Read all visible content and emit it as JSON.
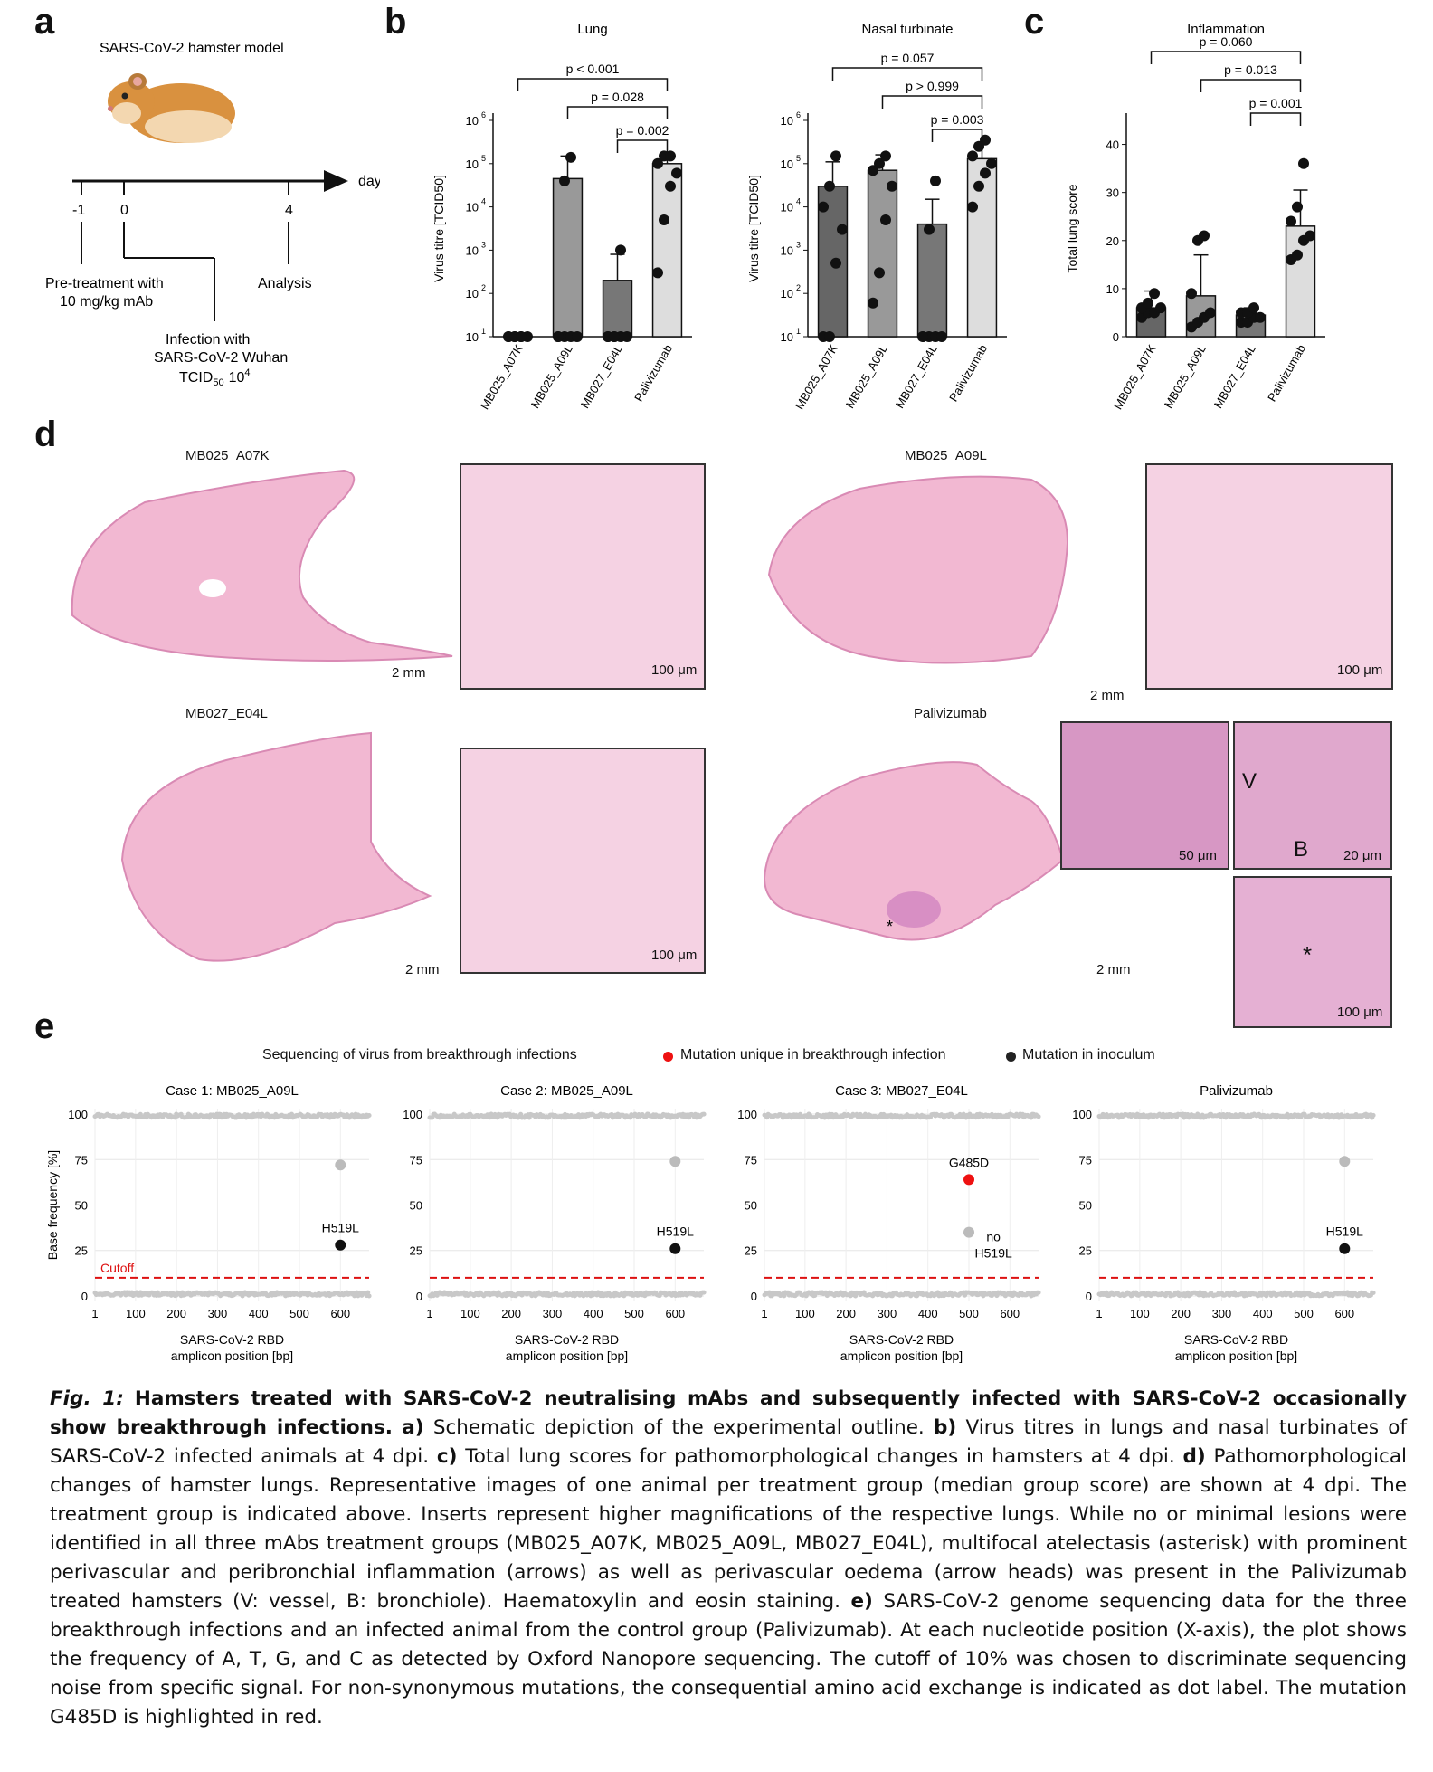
{
  "panels": {
    "a": "a",
    "b": "b",
    "c": "c",
    "d": "d",
    "e": "e"
  },
  "panel_a": {
    "title": "SARS-CoV-2 hamster model",
    "axis_unit": "day",
    "ticks": [
      "-1",
      "0",
      "4"
    ],
    "pretreatment_line1": "Pre-treatment with",
    "pretreatment_line2": "10 mg/kg mAb",
    "infection_line1": "Infection with",
    "infection_line2": "SARS-CoV-2 Wuhan",
    "infection_line3": "TCID",
    "infection_sub": "50",
    "infection_dose": "10",
    "infection_dose_exp": "4",
    "analysis": "Analysis"
  },
  "chart_data": [
    {
      "type": "bar",
      "title": "Lung",
      "ylabel": "Virus titre [TCID50]",
      "yscale": "log",
      "ylim": [
        10,
        1000000
      ],
      "yticks": [
        "10",
        "10",
        "10",
        "10",
        "10",
        "10"
      ],
      "ytick_exps": [
        "1",
        "2",
        "3",
        "4",
        "5",
        "6"
      ],
      "categories": [
        "MB025_A07K",
        "MB025_A09L",
        "MB027_E04L",
        "Palivizumab"
      ],
      "values": [
        10,
        45000,
        200,
        100000
      ],
      "error_upper": [
        10,
        150000,
        800,
        160000
      ],
      "bar_colors": [
        "#666666",
        "#999999",
        "#777777",
        "#dddddd"
      ],
      "points": [
        [
          10,
          10,
          10,
          10,
          10,
          10,
          10
        ],
        [
          10,
          10,
          10,
          10,
          10,
          40000,
          140000
        ],
        [
          10,
          10,
          10,
          10,
          10,
          10,
          1000
        ],
        [
          300,
          5000,
          30000,
          60000,
          100000,
          150000,
          150000
        ]
      ],
      "comparisons": [
        {
          "label": "p < 0.001",
          "from": 0,
          "to": 3
        },
        {
          "label": "p = 0.028",
          "from": 1,
          "to": 3
        },
        {
          "label": "p = 0.002",
          "from": 2,
          "to": 3
        }
      ]
    },
    {
      "type": "bar",
      "title": "Nasal turbinate",
      "ylabel": "Virus titre [TCID50]",
      "yscale": "log",
      "ylim": [
        10,
        1000000
      ],
      "yticks": [
        "10",
        "10",
        "10",
        "10",
        "10",
        "10"
      ],
      "ytick_exps": [
        "1",
        "2",
        "3",
        "4",
        "5",
        "6"
      ],
      "categories": [
        "MB025_A07K",
        "MB025_A09L",
        "MB027_E04L",
        "Palivizumab"
      ],
      "values": [
        30000,
        70000,
        4000,
        130000
      ],
      "error_upper": [
        110000,
        160000,
        15000,
        300000
      ],
      "bar_colors": [
        "#666666",
        "#999999",
        "#777777",
        "#dddddd"
      ],
      "points": [
        [
          10,
          10,
          500,
          3000,
          10000,
          30000,
          150000
        ],
        [
          60,
          300,
          5000,
          30000,
          70000,
          100000,
          150000
        ],
        [
          10,
          10,
          10,
          10,
          10,
          3000,
          40000
        ],
        [
          10000,
          30000,
          60000,
          100000,
          150000,
          250000,
          350000
        ]
      ],
      "comparisons": [
        {
          "label": "p = 0.057",
          "from": 0,
          "to": 3
        },
        {
          "label": "p > 0.999",
          "from": 1,
          "to": 3
        },
        {
          "label": "p = 0.003",
          "from": 2,
          "to": 3
        }
      ]
    },
    {
      "type": "bar",
      "title": "Inflammation",
      "ylabel": "Total lung score",
      "yscale": "linear",
      "ylim": [
        0,
        45
      ],
      "yticks": [
        "0",
        "10",
        "20",
        "30",
        "40"
      ],
      "categories": [
        "MB025_A07K",
        "MB025_A09L",
        "MB027_E04L",
        "Palivizumab"
      ],
      "values": [
        6,
        8.5,
        4.5,
        23
      ],
      "error_upper": [
        9.5,
        17,
        6,
        30.5
      ],
      "bar_colors": [
        "#666666",
        "#999999",
        "#777777",
        "#dddddd"
      ],
      "points": [
        [
          4,
          5,
          5,
          6,
          6,
          7,
          9
        ],
        [
          2,
          3,
          4,
          5,
          9,
          20,
          21
        ],
        [
          3,
          3,
          4,
          4,
          5,
          5,
          6
        ],
        [
          16,
          17,
          20,
          21,
          24,
          27,
          36
        ]
      ],
      "comparisons": [
        {
          "label": "p = 0.060",
          "from": 0,
          "to": 3
        },
        {
          "label": "p = 0.013",
          "from": 1,
          "to": 3
        },
        {
          "label": "p = 0.001",
          "from": 2,
          "to": 3
        }
      ]
    },
    {
      "type": "scatter",
      "title": "Case 1: MB025_A09L",
      "xlabel_line1": "SARS-CoV-2 RBD",
      "xlabel_line2": "amplicon position [bp]",
      "ylabel": "Base frequency [%]",
      "xlim": [
        1,
        670
      ],
      "ylim": [
        -3,
        103
      ],
      "xticks": [
        "1",
        "100",
        "200",
        "300",
        "400",
        "500",
        "600"
      ],
      "yticks": [
        "0",
        "25",
        "50",
        "75",
        "100"
      ],
      "cutoff": 10,
      "cutoff_label": "Cutoff",
      "highlight_points": [
        {
          "x": 600,
          "y": 72,
          "color": "#bbbbbb",
          "label": ""
        },
        {
          "x": 600,
          "y": 28,
          "color": "#111111",
          "label": "H519L"
        }
      ]
    },
    {
      "type": "scatter",
      "title": "Case 2: MB025_A09L",
      "xlabel_line1": "SARS-CoV-2 RBD",
      "xlabel_line2": "amplicon position [bp]",
      "xlim": [
        1,
        670
      ],
      "ylim": [
        -3,
        103
      ],
      "xticks": [
        "1",
        "100",
        "200",
        "300",
        "400",
        "500",
        "600"
      ],
      "yticks": [
        "0",
        "25",
        "50",
        "75",
        "100"
      ],
      "cutoff": 10,
      "highlight_points": [
        {
          "x": 600,
          "y": 74,
          "color": "#bbbbbb",
          "label": ""
        },
        {
          "x": 600,
          "y": 26,
          "color": "#111111",
          "label": "H519L"
        }
      ]
    },
    {
      "type": "scatter",
      "title": "Case 3: MB027_E04L",
      "xlabel_line1": "SARS-CoV-2 RBD",
      "xlabel_line2": "amplicon position [bp]",
      "xlim": [
        1,
        670
      ],
      "ylim": [
        -3,
        103
      ],
      "xticks": [
        "1",
        "100",
        "200",
        "300",
        "400",
        "500",
        "600"
      ],
      "yticks": [
        "0",
        "25",
        "50",
        "75",
        "100"
      ],
      "cutoff": 10,
      "highlight_points": [
        {
          "x": 500,
          "y": 64,
          "color": "#ee1111",
          "label": "G485D"
        },
        {
          "x": 500,
          "y": 35,
          "color": "#bbbbbb",
          "label": ""
        }
      ],
      "annotation_line1": "no",
      "annotation_line2": "H519L"
    },
    {
      "type": "scatter",
      "title": "Palivizumab",
      "xlabel_line1": "SARS-CoV-2 RBD",
      "xlabel_line2": "amplicon position [bp]",
      "xlim": [
        1,
        670
      ],
      "ylim": [
        -3,
        103
      ],
      "xticks": [
        "1",
        "100",
        "200",
        "300",
        "400",
        "500",
        "600"
      ],
      "yticks": [
        "0",
        "25",
        "50",
        "75",
        "100"
      ],
      "cutoff": 10,
      "highlight_points": [
        {
          "x": 600,
          "y": 74,
          "color": "#bbbbbb",
          "label": ""
        },
        {
          "x": 600,
          "y": 26,
          "color": "#111111",
          "label": "H519L"
        }
      ]
    }
  ],
  "panel_d": {
    "labels": [
      "MB025_A07K",
      "MB025_A09L",
      "MB027_E04L",
      "Palivizumab"
    ],
    "scale_2mm": "2 mm",
    "scale_100um": "100 μm",
    "scale_50um": "50 μm",
    "scale_20um": "20 μm",
    "inset_letters": {
      "v": "V",
      "b": "B",
      "star": "*"
    }
  },
  "panel_e": {
    "header": "Sequencing of virus from breakthrough infections",
    "legend_red": "Mutation unique in breakthrough infection",
    "legend_black": "Mutation in inoculum",
    "red_color": "#ee1111",
    "black_color": "#222222"
  },
  "caption": {
    "fig": "Fig. 1:",
    "title": "Hamsters treated with SARS-CoV-2 neutralising mAbs and subsequently infected with SARS-CoV-2 occasionally show breakthrough infections.",
    "a_lbl": "a)",
    "a_txt": "Schematic depiction of the experimental outline.",
    "b_lbl": "b)",
    "b_txt": "Virus titres in lungs and nasal turbinates of SARS-CoV-2 infected animals at 4 dpi.",
    "c_lbl": "c)",
    "c_txt": "Total lung scores for pathomorphological changes in hamsters at 4 dpi.",
    "d_lbl": "d)",
    "d_txt": "Pathomorphological changes of hamster lungs. Representative images of one animal per treatment group (median group score) are shown at 4 dpi. The treatment group is indicated above. Inserts represent higher magnifications of the respective lungs. While no or minimal lesions were identified in all three mAbs treatment groups (MB025_A07K, MB025_A09L, MB027_E04L), multifocal atelectasis (asterisk) with prominent perivascular and peribronchial inflammation (arrows) as well as perivascular oedema (arrow heads) was present in the Palivizumab treated hamsters (V: vessel, B: bronchiole). Haematoxylin and eosin staining.",
    "e_lbl": "e)",
    "e_txt": "SARS-CoV-2 genome sequencing data for the three breakthrough infections and an infected animal from the control group (Palivizumab). At each nucleotide position (X-axis), the plot shows the frequency of A, T, G, and C as detected by Oxford Nanopore sequencing. The cutoff of 10% was chosen to discriminate sequencing noise from specific signal. For non-synonymous mutations, the consequential amino acid exchange is indicated as dot label. The mutation G485D is highlighted in red."
  }
}
